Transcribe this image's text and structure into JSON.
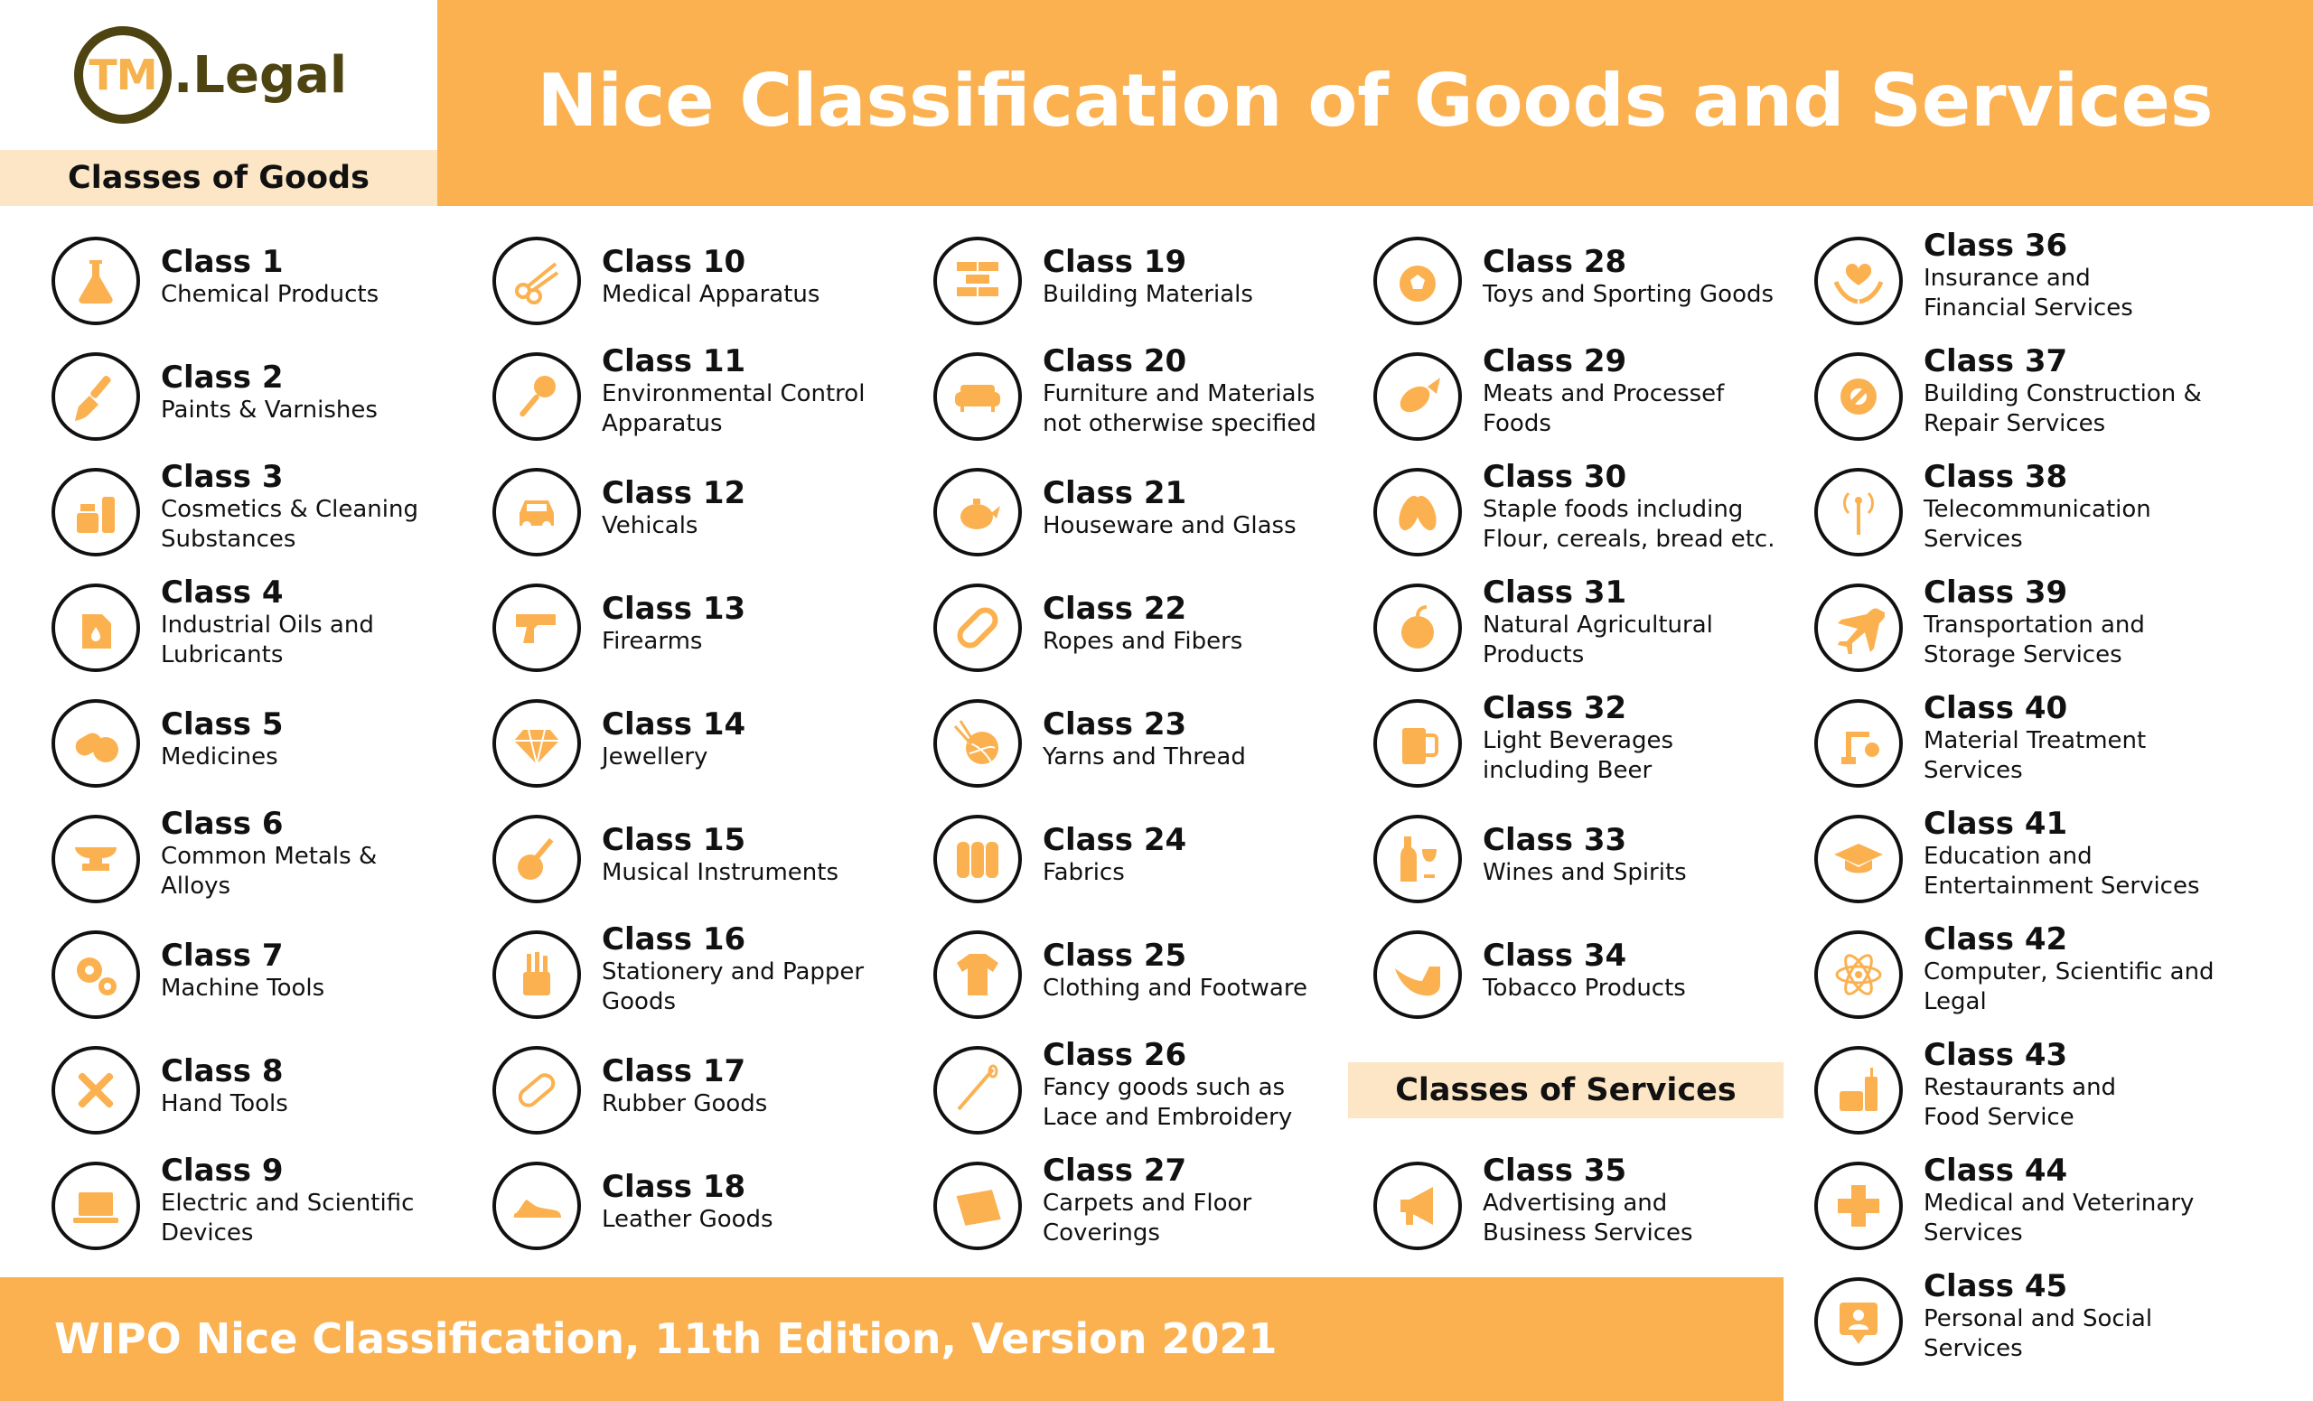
{
  "brand": {
    "mark": "TM",
    "name": ".Legal"
  },
  "title": "Nice Classification of Goods and Services",
  "goods_heading": "Classes of Goods",
  "services_heading": "Classes of Services",
  "footer": "WIPO Nice Classification, 11th Edition, Version 2021",
  "colors": {
    "accent": "#fbb14f",
    "accent_light": "#fde6c6",
    "brand_dark": "#4d4411",
    "ink": "#111111"
  },
  "classes": [
    {
      "title": "Class 1",
      "lines": [
        "Chemical Products"
      ],
      "icon": "flask-icon"
    },
    {
      "title": "Class 2",
      "lines": [
        "Paints & Varnishes"
      ],
      "icon": "paintbrush-icon"
    },
    {
      "title": "Class 3",
      "lines": [
        "Cosmetics & Cleaning",
        "Substances"
      ],
      "icon": "cosmetics-icon"
    },
    {
      "title": "Class 4",
      "lines": [
        "Industrial Oils and",
        "Lubricants"
      ],
      "icon": "oil-can-icon"
    },
    {
      "title": "Class 5",
      "lines": [
        "Medicines"
      ],
      "icon": "pills-icon"
    },
    {
      "title": "Class 6",
      "lines": [
        "Common Metals &",
        "Alloys"
      ],
      "icon": "anvil-icon"
    },
    {
      "title": "Class 7",
      "lines": [
        "Machine Tools"
      ],
      "icon": "gears-icon"
    },
    {
      "title": "Class 8",
      "lines": [
        "Hand Tools"
      ],
      "icon": "wrench-screwdriver-icon"
    },
    {
      "title": "Class 9",
      "lines": [
        "Electric and Scientific",
        "Devices"
      ],
      "icon": "laptop-icon"
    },
    {
      "title": "Class 10",
      "lines": [
        "Medical Apparatus"
      ],
      "icon": "scissors-icon"
    },
    {
      "title": "Class 11",
      "lines": [
        "Environmental Control",
        "Apparatus"
      ],
      "icon": "lamp-icon"
    },
    {
      "title": "Class 12",
      "lines": [
        "Vehicals"
      ],
      "icon": "car-icon"
    },
    {
      "title": "Class 13",
      "lines": [
        "Firearms"
      ],
      "icon": "pistol-icon"
    },
    {
      "title": "Class 14",
      "lines": [
        "Jewellery"
      ],
      "icon": "diamond-icon"
    },
    {
      "title": "Class 15",
      "lines": [
        "Musical Instruments"
      ],
      "icon": "guitar-icon"
    },
    {
      "title": "Class 16",
      "lines": [
        "Stationery and Papper",
        "Goods"
      ],
      "icon": "pencil-cup-icon"
    },
    {
      "title": "Class 17",
      "lines": [
        "Rubber Goods"
      ],
      "icon": "capsule-icon"
    },
    {
      "title": "Class 18",
      "lines": [
        "Leather Goods"
      ],
      "icon": "shoe-icon"
    },
    {
      "title": "Class 19",
      "lines": [
        "Building Materials"
      ],
      "icon": "bricks-icon"
    },
    {
      "title": "Class 20",
      "lines": [
        "Furniture and Materials",
        "not otherwise specified"
      ],
      "icon": "sofa-icon"
    },
    {
      "title": "Class 21",
      "lines": [
        "Houseware and Glass"
      ],
      "icon": "teapot-icon"
    },
    {
      "title": "Class 22",
      "lines": [
        "Ropes and Fibers"
      ],
      "icon": "rope-icon"
    },
    {
      "title": "Class 23",
      "lines": [
        "Yarns and Thread"
      ],
      "icon": "yarn-ball-icon"
    },
    {
      "title": "Class 24",
      "lines": [
        "Fabrics"
      ],
      "icon": "fabric-rolls-icon"
    },
    {
      "title": "Class 25",
      "lines": [
        "Clothing and Footware"
      ],
      "icon": "tshirt-icon"
    },
    {
      "title": "Class 26",
      "lines": [
        "Fancy goods such as",
        "Lace and Embroidery"
      ],
      "icon": "needle-icon"
    },
    {
      "title": "Class 27",
      "lines": [
        "Carpets and Floor",
        "Coverings"
      ],
      "icon": "carpet-icon"
    },
    {
      "title": "Class 28",
      "lines": [
        "Toys and Sporting Goods"
      ],
      "icon": "soccer-ball-icon"
    },
    {
      "title": "Class 29",
      "lines": [
        "Meats and Processef",
        "Foods"
      ],
      "icon": "fish-icon"
    },
    {
      "title": "Class 30",
      "lines": [
        "Staple foods including",
        "Flour, cereals, bread etc."
      ],
      "icon": "grains-icon"
    },
    {
      "title": "Class 31",
      "lines": [
        "Natural Agricultural",
        "Products"
      ],
      "icon": "apple-icon"
    },
    {
      "title": "Class 32",
      "lines": [
        "Light Beverages",
        "including Beer"
      ],
      "icon": "beer-mug-icon"
    },
    {
      "title": "Class 33",
      "lines": [
        "Wines and Spirits"
      ],
      "icon": "wine-icon"
    },
    {
      "title": "Class 34",
      "lines": [
        "Tobacco Products"
      ],
      "icon": "pipe-icon"
    },
    {
      "title": "Class 35",
      "lines": [
        "Advertising and",
        "Business Services"
      ],
      "icon": "megaphone-icon"
    },
    {
      "title": "Class 36",
      "lines": [
        "Insurance and",
        "Financial Services"
      ],
      "icon": "hands-heart-icon"
    },
    {
      "title": "Class 37",
      "lines": [
        "Building Construction &",
        "Repair Services"
      ],
      "icon": "gear-wrench-icon"
    },
    {
      "title": "Class 38",
      "lines": [
        "Telecommunication",
        "Services"
      ],
      "icon": "antenna-icon"
    },
    {
      "title": "Class 39",
      "lines": [
        "Transportation and",
        "Storage Services"
      ],
      "icon": "airplane-icon"
    },
    {
      "title": "Class 40",
      "lines": [
        "Material Treatment",
        "Services"
      ],
      "icon": "robot-arm-icon"
    },
    {
      "title": "Class 41",
      "lines": [
        "Education and",
        "Entertainment Services"
      ],
      "icon": "graduation-cap-icon"
    },
    {
      "title": "Class 42",
      "lines": [
        "Computer, Scientific and",
        "Legal"
      ],
      "icon": "atom-icon"
    },
    {
      "title": "Class 43",
      "lines": [
        "Restaurants and",
        "Food Service"
      ],
      "icon": "food-drink-icon"
    },
    {
      "title": "Class 44",
      "lines": [
        "Medical and Veterinary",
        "Services"
      ],
      "icon": "medical-cross-icon"
    },
    {
      "title": "Class 45",
      "lines": [
        "Personal and Social",
        "Services"
      ],
      "icon": "person-badge-icon"
    }
  ]
}
